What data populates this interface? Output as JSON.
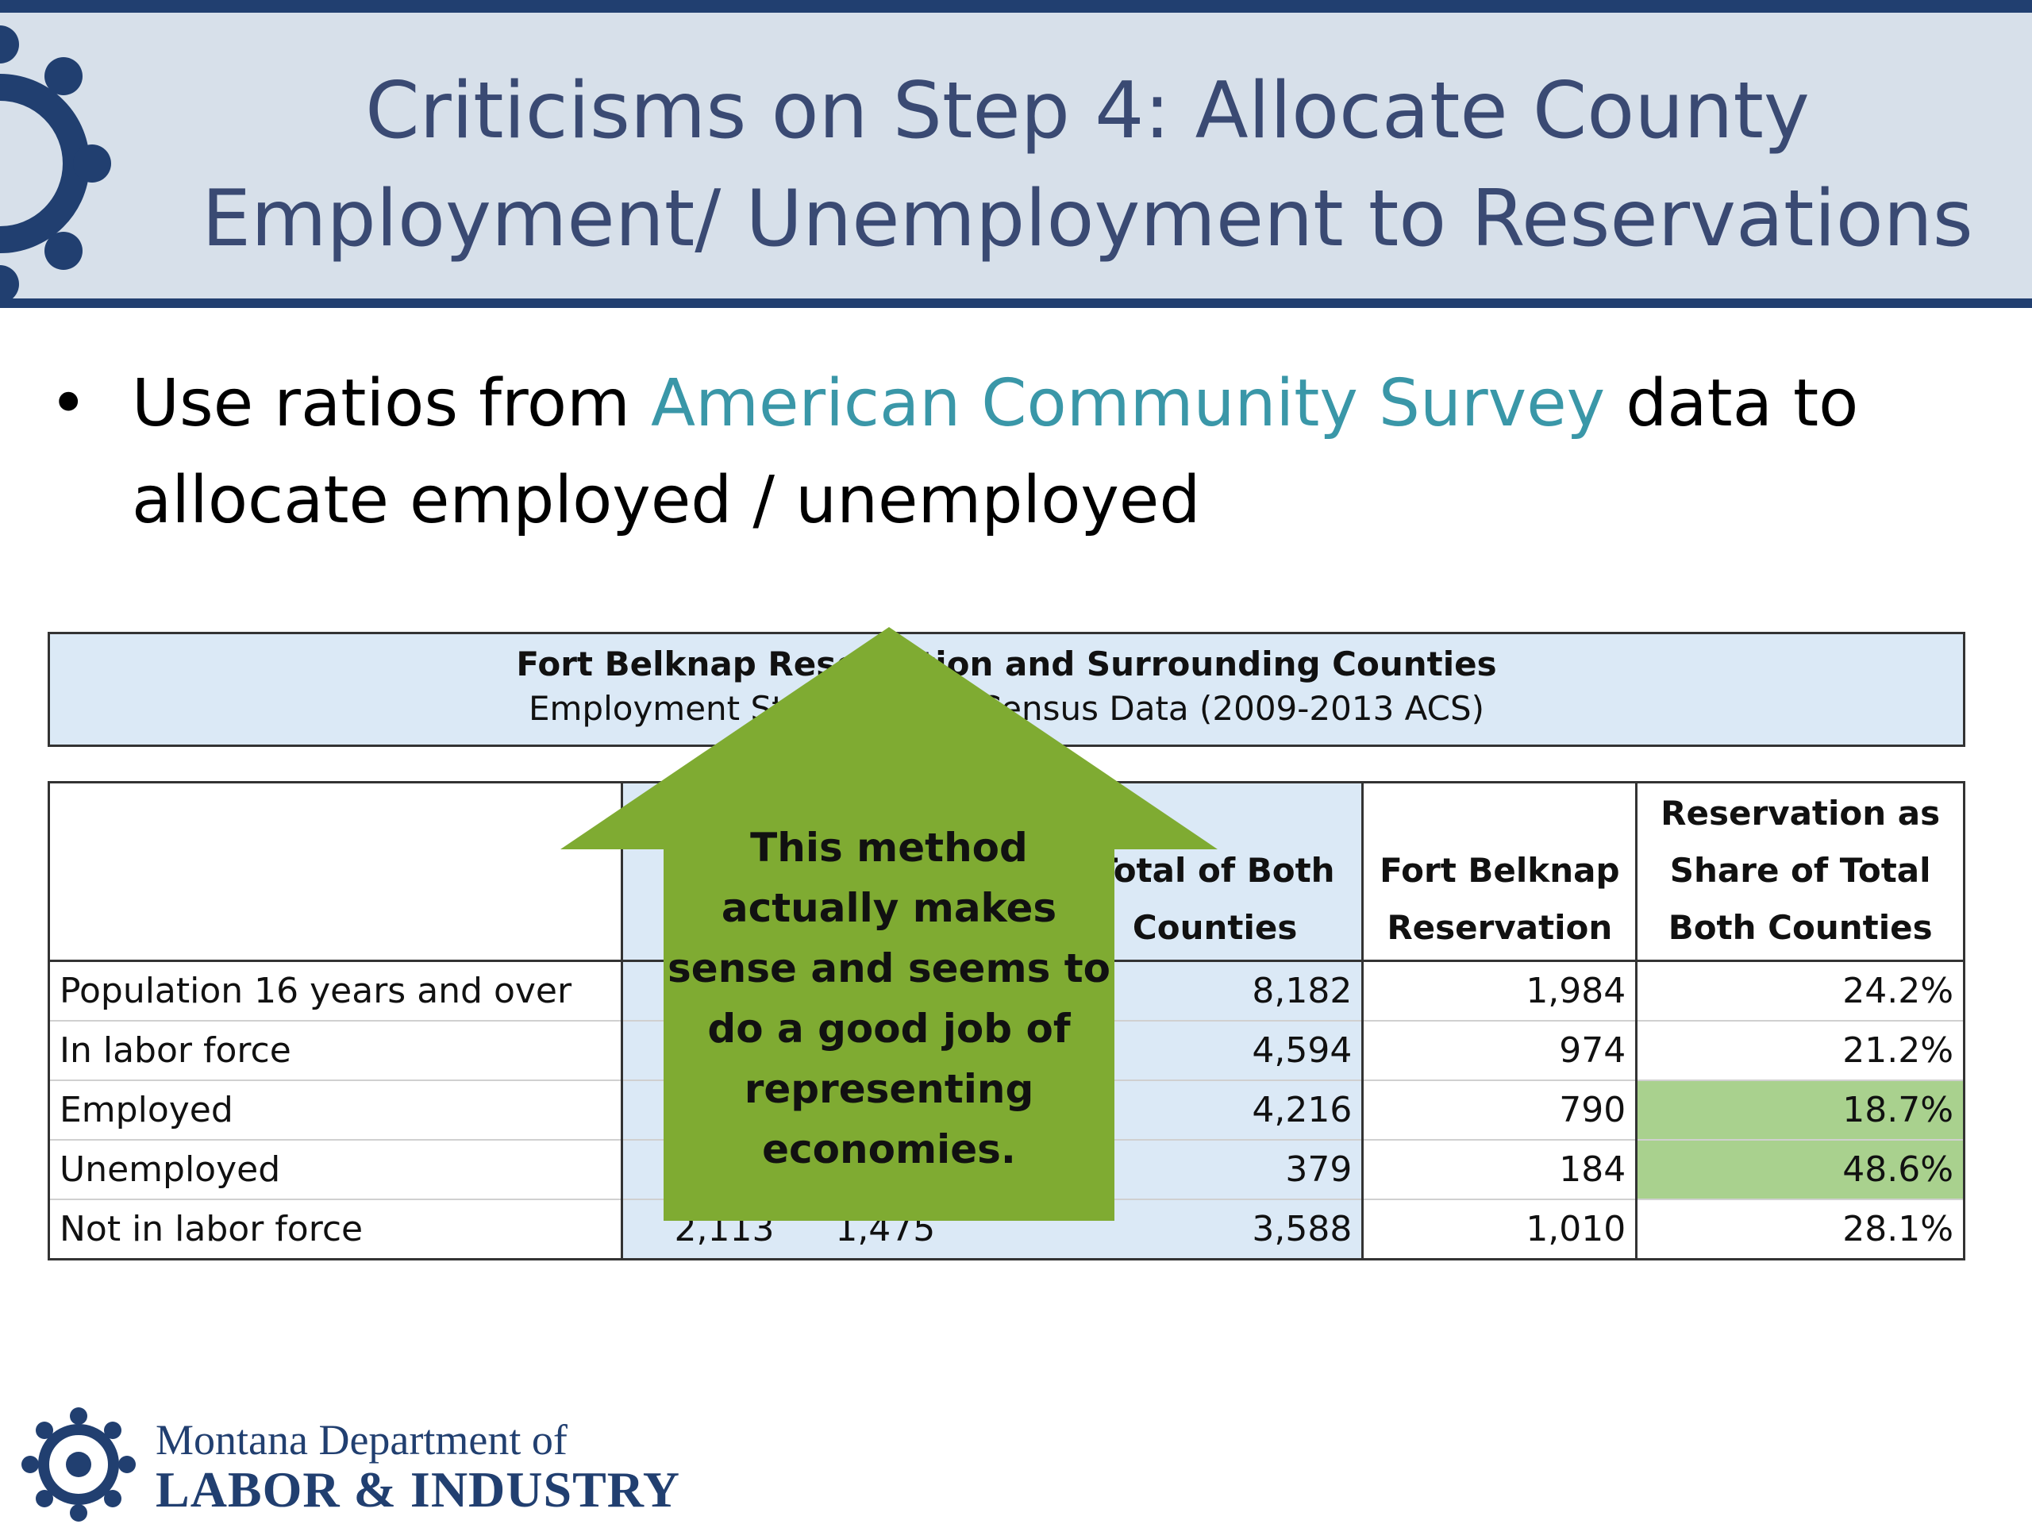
{
  "slide": {
    "title_line1": "Criticisms on Step 4: Allocate County",
    "title_line2": "Employment/ Unemployment to Reservations",
    "bullet": {
      "marker": "•",
      "before": "Use ratios from ",
      "highlight": "American Community Survey",
      "after_line1": " data to",
      "line2": "allocate employed / unemployed"
    }
  },
  "table": {
    "caption_title": "Fort Belknap Reservation and Surrounding Counties",
    "caption_subtitle": "Employment Status 5-Year Census Data (2009-2013 ACS)",
    "headers": {
      "total": [
        "Total of Both",
        "Counties"
      ],
      "reservation": [
        "Fort Belknap",
        "Reservation"
      ],
      "share": [
        "Reservation as",
        "Share of Total",
        "Both Counties"
      ]
    },
    "rows": [
      {
        "label": "Population 16 years and over",
        "county_a": "",
        "county_b": "",
        "total": "8,182",
        "reservation": "1,984",
        "share": "24.2%"
      },
      {
        "label": "In labor force",
        "county_a": "",
        "county_b": "",
        "total": "4,594",
        "reservation": "974",
        "share": "21.2%"
      },
      {
        "label": "Employed",
        "county_a": "",
        "county_b": "",
        "total": "4,216",
        "reservation": "790",
        "share": "18.7%"
      },
      {
        "label": "Unemployed",
        "county_a": "",
        "county_b": "",
        "total": "379",
        "reservation": "184",
        "share": "48.6%"
      },
      {
        "label": "Not in labor force",
        "county_a": "2,113",
        "county_b": "1,475",
        "total": "3,588",
        "reservation": "1,010",
        "share": "28.1%"
      }
    ]
  },
  "callout": {
    "lines": [
      "This method",
      "actually makes",
      "sense and seems to",
      "do a good job of",
      "representing",
      "economies."
    ],
    "color": "#7fab32"
  },
  "footer": {
    "line1": "Montana Department of",
    "line2": "LABOR & INDUSTRY"
  },
  "colors": {
    "navy": "#213f70",
    "header_bg": "#d7e0ea",
    "title_text": "#3a4a73",
    "link_teal": "#3a97a8",
    "table_blue": "#dbe9f6",
    "highlight_green": "#a9d18e"
  }
}
